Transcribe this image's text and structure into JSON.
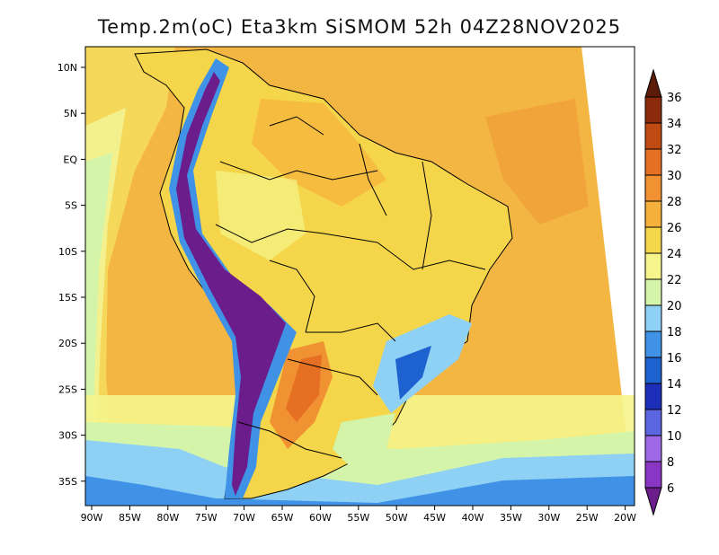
{
  "title": "Temp.2m(oC) Eta3km SiSMOM 52h 04Z28NOV2025",
  "lat_labels": [
    "10N",
    "5N",
    "EQ",
    "5S",
    "10S",
    "15S",
    "20S",
    "25S",
    "30S",
    "35S"
  ],
  "lon_labels": [
    "90W",
    "85W",
    "80W",
    "75W",
    "70W",
    "65W",
    "60W",
    "55W",
    "50W",
    "45W",
    "40W",
    "35W",
    "30W",
    "25W",
    "20W"
  ],
  "colorbar": {
    "labels": [
      "6",
      "8",
      "10",
      "12",
      "14",
      "16",
      "18",
      "20",
      "22",
      "24",
      "26",
      "28",
      "30",
      "32",
      "34",
      "36"
    ],
    "colors": [
      "#6c1d8c",
      "#8a36c4",
      "#9d67e6",
      "#5c66e0",
      "#1d2fb8",
      "#1e62cf",
      "#3f92e6",
      "#8fd0f5",
      "#d4f5a9",
      "#f5f58c",
      "#f5d64a",
      "#f5b13c",
      "#f09132",
      "#e56f23",
      "#bf4b12",
      "#8c2b0c",
      "#5c1a08"
    ]
  },
  "colors": {
    "ocean_warm": "#f3b642",
    "ocean_mid": "#f5d85a",
    "ocean_cool": "#f3f08e",
    "ocean_cold": "#8fd0f5",
    "land": "#f5d64a",
    "andes_cold": "#6c1d8c",
    "andes_cool": "#3f92e6",
    "border": "#000000"
  }
}
